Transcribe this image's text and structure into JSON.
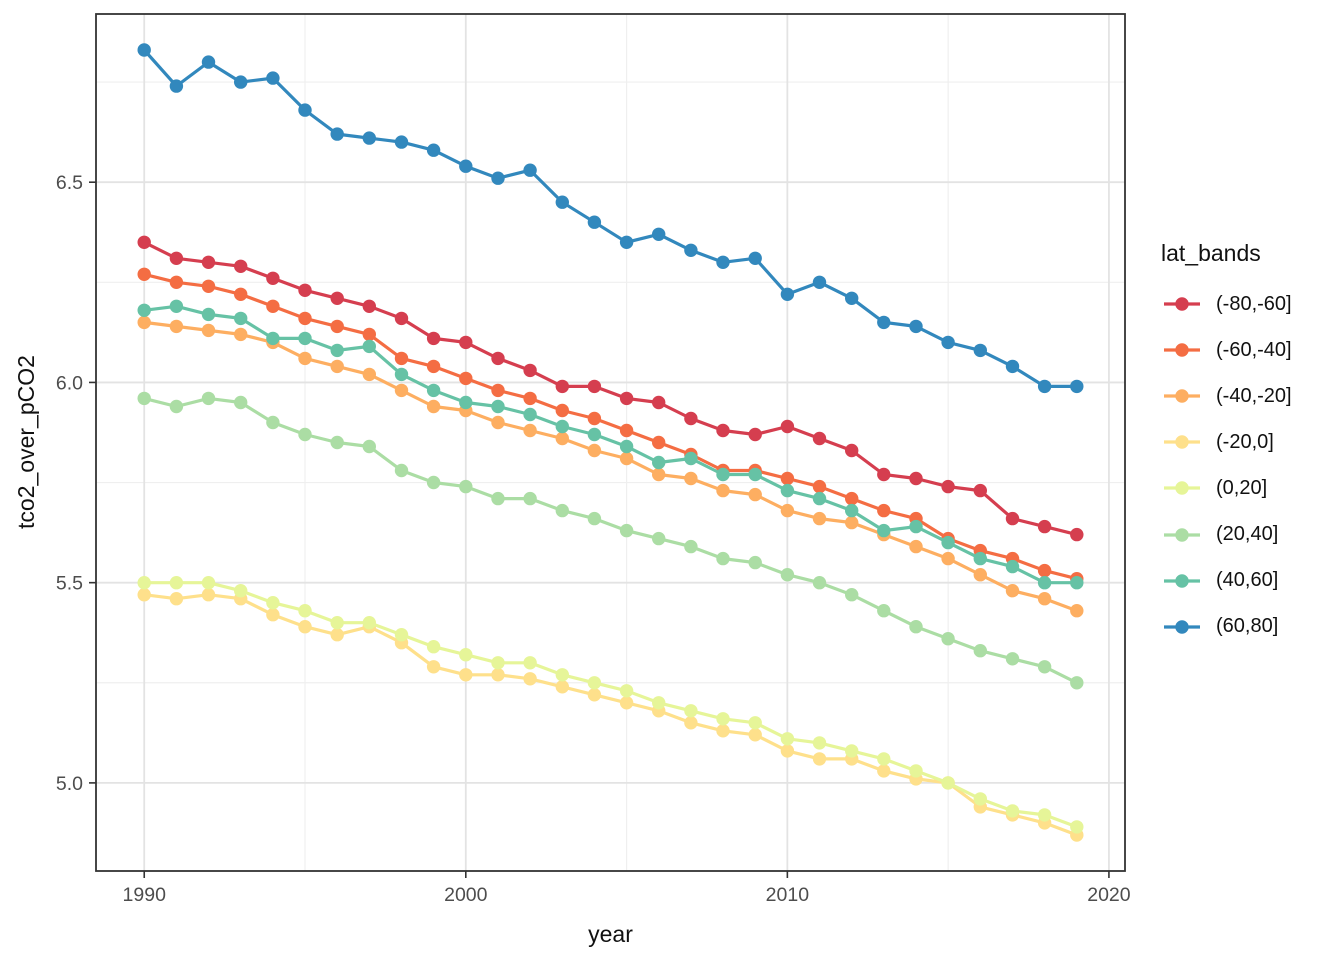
{
  "chart_data": {
    "type": "line",
    "xlabel": "year",
    "ylabel": "tco2_over_pCO2",
    "legend_title": "lat_bands",
    "legend_position": "right",
    "grid": true,
    "xlim": [
      1988.5,
      2020.5
    ],
    "ylim": [
      4.78,
      6.92
    ],
    "x_ticks": [
      1990,
      2000,
      2010,
      2020
    ],
    "x_minor": [
      1995,
      2005,
      2015
    ],
    "y_ticks": [
      5.0,
      5.5,
      6.0,
      6.5
    ],
    "y_minor": [
      5.25,
      5.75,
      6.25,
      6.75
    ],
    "x": [
      1990,
      1991,
      1992,
      1993,
      1994,
      1995,
      1996,
      1997,
      1998,
      1999,
      2000,
      2001,
      2002,
      2003,
      2004,
      2005,
      2006,
      2007,
      2008,
      2009,
      2010,
      2011,
      2012,
      2013,
      2014,
      2015,
      2016,
      2017,
      2018,
      2019
    ],
    "series": [
      {
        "name": "(-80,-60]",
        "color": "#d53e4f",
        "values": [
          6.35,
          6.31,
          6.3,
          6.29,
          6.26,
          6.23,
          6.21,
          6.19,
          6.16,
          6.11,
          6.1,
          6.06,
          6.03,
          5.99,
          5.99,
          5.96,
          5.95,
          5.91,
          5.88,
          5.87,
          5.89,
          5.86,
          5.83,
          5.77,
          5.76,
          5.74,
          5.73,
          5.66,
          5.64,
          5.62
        ]
      },
      {
        "name": "(-60,-40]",
        "color": "#f46d43",
        "values": [
          6.27,
          6.25,
          6.24,
          6.22,
          6.19,
          6.16,
          6.14,
          6.12,
          6.06,
          6.04,
          6.01,
          5.98,
          5.96,
          5.93,
          5.91,
          5.88,
          5.85,
          5.82,
          5.78,
          5.78,
          5.76,
          5.74,
          5.71,
          5.68,
          5.66,
          5.61,
          5.58,
          5.56,
          5.53,
          5.51
        ]
      },
      {
        "name": "(-40,-20]",
        "color": "#fdae61",
        "values": [
          6.15,
          6.14,
          6.13,
          6.12,
          6.1,
          6.06,
          6.04,
          6.02,
          5.98,
          5.94,
          5.93,
          5.9,
          5.88,
          5.86,
          5.83,
          5.81,
          5.77,
          5.76,
          5.73,
          5.72,
          5.68,
          5.66,
          5.65,
          5.62,
          5.59,
          5.56,
          5.52,
          5.48,
          5.46,
          5.43
        ]
      },
      {
        "name": "(-20,0]",
        "color": "#fee08b",
        "values": [
          5.47,
          5.46,
          5.47,
          5.46,
          5.42,
          5.39,
          5.37,
          5.39,
          5.35,
          5.29,
          5.27,
          5.27,
          5.26,
          5.24,
          5.22,
          5.2,
          5.18,
          5.15,
          5.13,
          5.12,
          5.08,
          5.06,
          5.06,
          5.03,
          5.01,
          5.0,
          4.94,
          4.92,
          4.9,
          4.87
        ]
      },
      {
        "name": "(0,20]",
        "color": "#e6f598",
        "values": [
          5.5,
          5.5,
          5.5,
          5.48,
          5.45,
          5.43,
          5.4,
          5.4,
          5.37,
          5.34,
          5.32,
          5.3,
          5.3,
          5.27,
          5.25,
          5.23,
          5.2,
          5.18,
          5.16,
          5.15,
          5.11,
          5.1,
          5.08,
          5.06,
          5.03,
          5.0,
          4.96,
          4.93,
          4.92,
          4.89
        ]
      },
      {
        "name": "(20,40]",
        "color": "#abdda4",
        "values": [
          5.96,
          5.94,
          5.96,
          5.95,
          5.9,
          5.87,
          5.85,
          5.84,
          5.78,
          5.75,
          5.74,
          5.71,
          5.71,
          5.68,
          5.66,
          5.63,
          5.61,
          5.59,
          5.56,
          5.55,
          5.52,
          5.5,
          5.47,
          5.43,
          5.39,
          5.36,
          5.33,
          5.31,
          5.29,
          5.25
        ]
      },
      {
        "name": "(40,60]",
        "color": "#66c2a5",
        "values": [
          6.18,
          6.19,
          6.17,
          6.16,
          6.11,
          6.11,
          6.08,
          6.09,
          6.02,
          5.98,
          5.95,
          5.94,
          5.92,
          5.89,
          5.87,
          5.84,
          5.8,
          5.81,
          5.77,
          5.77,
          5.73,
          5.71,
          5.68,
          5.63,
          5.64,
          5.6,
          5.56,
          5.54,
          5.5,
          5.5
        ]
      },
      {
        "name": "(60,80]",
        "color": "#3288bd",
        "values": [
          6.83,
          6.74,
          6.8,
          6.75,
          6.76,
          6.68,
          6.62,
          6.61,
          6.6,
          6.58,
          6.54,
          6.51,
          6.53,
          6.45,
          6.4,
          6.35,
          6.37,
          6.33,
          6.3,
          6.31,
          6.22,
          6.25,
          6.21,
          6.15,
          6.14,
          6.1,
          6.08,
          6.04,
          5.99,
          5.99
        ]
      }
    ]
  },
  "style_colors": {
    "panel_border": "#333333",
    "grid_major": "#e3e3e3",
    "grid_minor": "#efefef",
    "tick_mark": "#333333",
    "tick_label": "#4d4d4d"
  }
}
